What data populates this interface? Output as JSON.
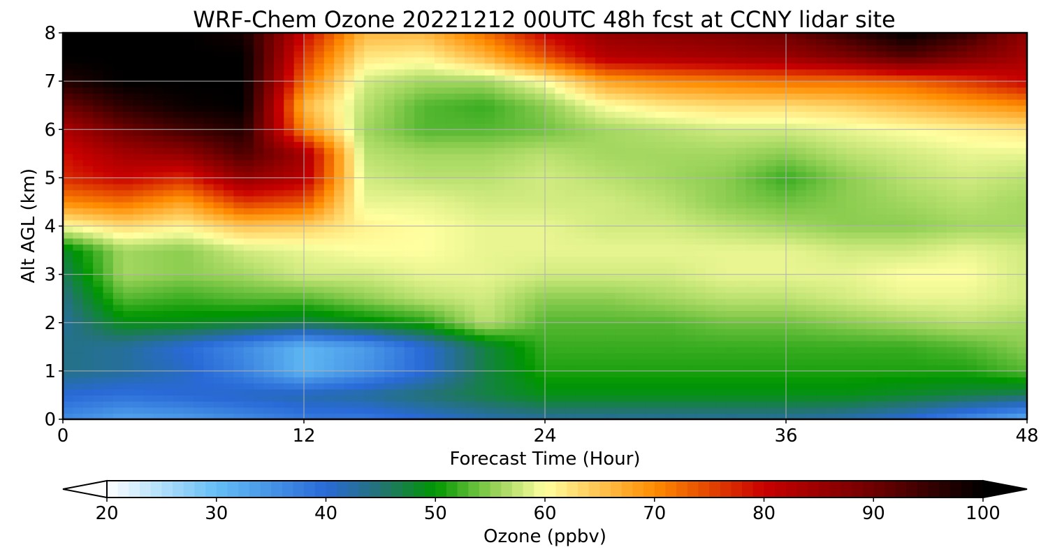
{
  "chart_data": {
    "type": "heatmap",
    "title": "WRF-Chem Ozone  20221212 00UTC 48h fcst at CCNY lidar site",
    "xlabel": "Forecast Time (Hour)",
    "ylabel": "Alt AGL (km)",
    "xlim": [
      0,
      48
    ],
    "ylim": [
      0,
      8
    ],
    "x_ticks": [
      0,
      12,
      24,
      36,
      48
    ],
    "y_ticks": [
      0,
      1,
      2,
      3,
      4,
      5,
      6,
      7,
      8
    ],
    "grid": true,
    "x": [
      0,
      3,
      6,
      9,
      12,
      15,
      18,
      21,
      24,
      27,
      30,
      33,
      36,
      39,
      42,
      45,
      48
    ],
    "y": [
      0,
      0.5,
      1,
      1.5,
      2,
      2.5,
      3,
      3.5,
      4,
      4.5,
      5,
      5.5,
      6,
      6.5,
      7,
      7.5,
      8
    ],
    "z": [
      [
        36,
        33,
        34,
        36,
        38,
        38,
        40,
        42,
        43,
        43,
        43,
        43,
        43,
        42,
        40,
        36,
        32
      ],
      [
        40,
        39,
        40,
        41,
        42,
        43,
        45,
        47,
        49,
        49,
        49,
        49,
        49,
        49,
        48,
        47,
        46
      ],
      [
        44,
        43,
        41,
        37,
        31,
        35,
        40,
        47,
        51,
        51,
        51,
        51,
        51,
        51,
        51,
        51,
        53
      ],
      [
        44,
        43,
        40,
        36,
        31,
        34,
        40,
        47,
        52,
        52,
        52,
        52,
        52,
        52,
        52,
        53,
        55
      ],
      [
        43,
        49,
        49,
        48,
        47,
        49,
        51,
        57,
        53,
        53,
        53,
        54,
        54,
        55,
        56,
        57,
        56
      ],
      [
        44,
        53,
        52,
        53,
        53,
        55,
        57,
        58,
        55,
        55,
        56,
        57,
        57,
        58,
        59,
        59,
        58
      ],
      [
        46,
        56,
        55,
        56,
        58,
        58,
        59,
        59,
        58,
        58,
        58,
        59,
        59,
        59,
        60,
        60,
        58
      ],
      [
        48,
        56,
        55,
        58,
        59,
        60,
        60,
        59,
        59,
        59,
        59,
        59,
        59,
        58,
        58,
        59,
        58
      ],
      [
        60,
        63,
        61,
        65,
        64,
        61,
        60,
        59,
        59,
        58,
        58,
        57,
        56,
        55,
        55,
        56,
        56
      ],
      [
        70,
        72,
        68,
        76,
        74,
        59,
        59,
        58,
        58,
        58,
        57,
        55,
        54,
        55,
        56,
        57,
        56
      ],
      [
        77,
        80,
        77,
        86,
        82,
        58,
        57,
        57,
        58,
        57,
        56,
        55,
        52,
        55,
        57,
        58,
        57
      ],
      [
        79,
        84,
        86,
        93,
        84,
        57,
        56,
        56,
        57,
        56,
        56,
        56,
        55,
        57,
        58,
        59,
        59
      ],
      [
        83,
        90,
        94,
        97,
        70,
        56,
        53,
        53,
        54,
        56,
        57,
        58,
        58,
        59,
        60,
        61,
        62
      ],
      [
        90,
        96,
        99,
        100,
        66,
        57,
        53,
        52,
        55,
        60,
        62,
        63,
        63,
        64,
        66,
        68,
        70
      ],
      [
        97,
        100,
        100,
        100,
        72,
        58,
        56,
        56,
        60,
        68,
        70,
        71,
        72,
        72,
        73,
        76,
        80
      ],
      [
        100,
        100,
        100,
        100,
        76,
        62,
        61,
        66,
        74,
        82,
        83,
        84,
        85,
        88,
        92,
        88,
        84
      ],
      [
        100,
        100,
        100,
        98,
        80,
        66,
        66,
        72,
        80,
        86,
        87,
        88,
        90,
        95,
        100,
        95,
        86
      ]
    ],
    "colorbar": {
      "label": "Ozone  (ppbv)",
      "ticks": [
        20,
        30,
        40,
        50,
        60,
        70,
        80,
        90,
        100
      ],
      "range": [
        20,
        100
      ],
      "extend": "both"
    }
  }
}
